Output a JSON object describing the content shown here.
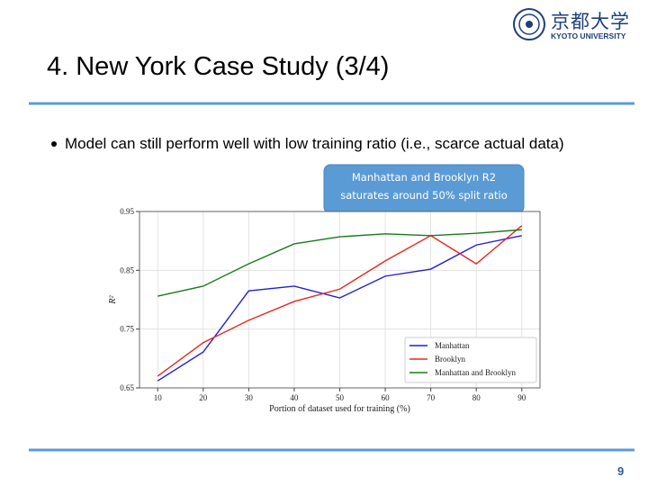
{
  "header": {
    "title": "4. New York Case Study (3/4)",
    "logo_text": "京都大学",
    "logo_subtext": "KYOTO UNIVERSITY"
  },
  "bullets": [
    "Model can still perform well with low training ratio (i.e., scarce actual data)"
  ],
  "callout": "Manhattan and Brooklyn R2 saturates around 50% split ratio",
  "page_number": "9",
  "chart_data": {
    "type": "line",
    "xlabel": "Portion of dataset used for training (%)",
    "ylabel": "R²",
    "x": [
      10,
      20,
      30,
      40,
      50,
      60,
      70,
      80,
      90
    ],
    "series": [
      {
        "name": "Manhattan",
        "color": "#1f1fd6",
        "values": [
          0.662,
          0.711,
          0.815,
          0.823,
          0.803,
          0.84,
          0.852,
          0.893,
          0.909
        ]
      },
      {
        "name": "Brooklyn",
        "color": "#e8261f",
        "values": [
          0.67,
          0.727,
          0.765,
          0.797,
          0.818,
          0.866,
          0.909,
          0.861,
          0.926
        ]
      },
      {
        "name": "Manhattan and Brooklyn",
        "color": "#1a7a1a",
        "values": [
          0.806,
          0.823,
          0.861,
          0.895,
          0.907,
          0.912,
          0.909,
          0.913,
          0.919
        ]
      }
    ],
    "xlim": [
      6,
      94
    ],
    "ylim": [
      0.65,
      0.95
    ],
    "xticks": [
      10,
      20,
      30,
      40,
      50,
      60,
      70,
      80,
      90
    ],
    "yticks": [
      0.65,
      0.75,
      0.85,
      0.95
    ],
    "grid": true,
    "legend": "lower right"
  }
}
